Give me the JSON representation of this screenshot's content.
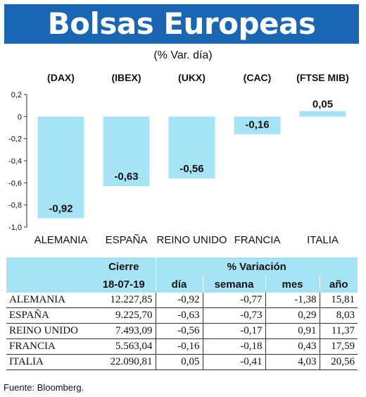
{
  "title": "Bolsas Europeas",
  "subtitle": "(% Var. día)",
  "chart_data": {
    "type": "bar",
    "index_labels": [
      "(DAX)",
      "(IBEX)",
      "(UKX)",
      "(CAC)",
      "(FTSE MIB)"
    ],
    "categories": [
      "ALEMANIA",
      "ESPAÑA",
      "REINO UNIDO",
      "FRANCIA",
      "ITALIA"
    ],
    "values": [
      -0.92,
      -0.63,
      -0.56,
      -0.16,
      0.05
    ],
    "value_labels": [
      "-0,92",
      "-0,63",
      "-0,56",
      "-0,16",
      "0,05"
    ],
    "yticks": [
      0.2,
      0,
      -0.2,
      -0.4,
      -0.6,
      -0.8,
      -1.0
    ],
    "ytick_labels": [
      "0,2",
      "0",
      "-0,2",
      "-0,4",
      "-0,6",
      "-0,8",
      "-1,0"
    ],
    "ylim": [
      -1.0,
      0.2
    ],
    "bar_color": "#a6e3f6",
    "grid": false,
    "legend": "none"
  },
  "table": {
    "header_cierre": "Cierre",
    "header_variacion": "% Variación",
    "header_date": "18-07-19",
    "col_dia": "día",
    "col_semana": "semana",
    "col_mes": "mes",
    "col_ano": "año",
    "rows": [
      {
        "country": "ALEMANIA",
        "cierre": "12.227,85",
        "dia": "-0,92",
        "semana": "-0,77",
        "mes": "-1,38",
        "ano": "15,81"
      },
      {
        "country": "ESPAÑA",
        "cierre": "9.225,70",
        "dia": "-0,63",
        "semana": "-0,73",
        "mes": "0,29",
        "ano": "8,03"
      },
      {
        "country": "REINO UNIDO",
        "cierre": "7.493,09",
        "dia": "-0,56",
        "semana": "-0,17",
        "mes": "0,91",
        "ano": "11,37"
      },
      {
        "country": "FRANCIA",
        "cierre": "5.563,04",
        "dia": "-0,16",
        "semana": "-0,18",
        "mes": "0,43",
        "ano": "17,59"
      },
      {
        "country": "ITALIA",
        "cierre": "22.090,81",
        "dia": "0,05",
        "semana": "-0,41",
        "mes": "4,03",
        "ano": "20,56"
      }
    ]
  },
  "source": "Fuente: Bloomberg.",
  "colors": {
    "banner": "#1a66b3",
    "bar": "#a6e3f6",
    "header_fill": "#a6e3f6"
  }
}
